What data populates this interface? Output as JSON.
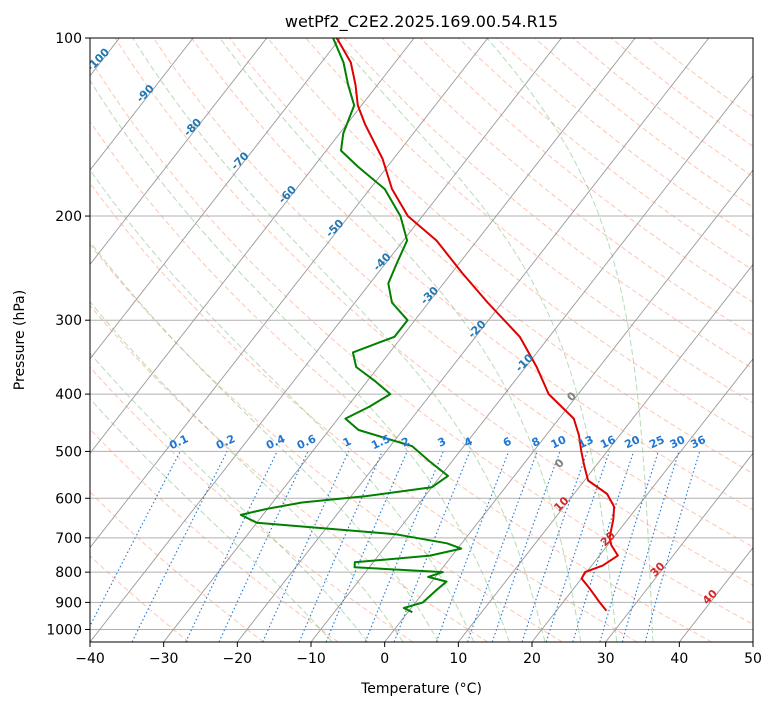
{
  "chart_data": {
    "type": "line",
    "title": "wetPf2_C2E2.2025.169.00.54.R15",
    "xlabel": "Temperature (°C)",
    "ylabel": "Pressure (hPa)",
    "xlim": [
      -40,
      50
    ],
    "ylim": [
      1050,
      100
    ],
    "y_scale": "log",
    "grid": true,
    "x_ticks": [
      "−40",
      "−30",
      "−20",
      "−10",
      "0",
      "10",
      "20",
      "30",
      "40",
      "50"
    ],
    "y_ticks": [
      {
        "p": 1000,
        "label": "1000"
      },
      {
        "p": 900,
        "label": "900"
      },
      {
        "p": 800,
        "label": "800"
      },
      {
        "p": 700,
        "label": "700"
      },
      {
        "p": 600,
        "label": "600"
      },
      {
        "p": 500,
        "label": "500"
      },
      {
        "p": 400,
        "label": "400"
      },
      {
        "p": 300,
        "label": "300"
      },
      {
        "p": 200,
        "label": "200"
      },
      {
        "p": 100,
        "label": "100"
      }
    ],
    "skew_reference": {
      "dx": 64,
      "dp_from": 1050,
      "dp_to": 100
    },
    "isotherm_start_values": [
      -110,
      -100,
      -90,
      -80,
      -70,
      -60,
      -50,
      -40,
      -30,
      -20,
      -10,
      0,
      10,
      20,
      30,
      40,
      50
    ],
    "dry_adiabat_thetas": [
      -30,
      -20,
      -10,
      0,
      10,
      20,
      30,
      40,
      50,
      60,
      70,
      80,
      90,
      100,
      110,
      120,
      130,
      140,
      150,
      160,
      170,
      180,
      190,
      200
    ],
    "moist_adiabat_bases": [
      -10,
      -5,
      0,
      5,
      10,
      15,
      20,
      25,
      30,
      35
    ],
    "mixing_ratios": [
      "0.1",
      "0.2",
      "0.4",
      "0.6",
      "1",
      "1.5",
      "2",
      "3",
      "4",
      "6",
      "8",
      "10",
      "13",
      "16",
      "20",
      "25",
      "30",
      "36"
    ],
    "series": [
      {
        "key": "temperature",
        "color": "#e00000",
        "points": [
          {
            "p": 930,
            "t": 26.8
          },
          {
            "p": 900,
            "t": 25.0
          },
          {
            "p": 850,
            "t": 22.0
          },
          {
            "p": 820,
            "t": 20.0
          },
          {
            "p": 800,
            "t": 19.8
          },
          {
            "p": 780,
            "t": 21.5
          },
          {
            "p": 750,
            "t": 22.5
          },
          {
            "p": 720,
            "t": 20.5
          },
          {
            "p": 700,
            "t": 19.5
          },
          {
            "p": 650,
            "t": 18.0
          },
          {
            "p": 620,
            "t": 16.8
          },
          {
            "p": 590,
            "t": 14.5
          },
          {
            "p": 560,
            "t": 10.5
          },
          {
            "p": 530,
            "t": 8.5
          },
          {
            "p": 500,
            "t": 6.5
          },
          {
            "p": 470,
            "t": 4.5
          },
          {
            "p": 440,
            "t": 2.0
          },
          {
            "p": 400,
            "t": -4.0
          },
          {
            "p": 360,
            "t": -8.5
          },
          {
            "p": 320,
            "t": -14.0
          },
          {
            "p": 280,
            "t": -22.0
          },
          {
            "p": 250,
            "t": -28.5
          },
          {
            "p": 220,
            "t": -35.5
          },
          {
            "p": 200,
            "t": -42.0
          },
          {
            "p": 180,
            "t": -47.0
          },
          {
            "p": 160,
            "t": -51.5
          },
          {
            "p": 140,
            "t": -57.5
          },
          {
            "p": 130,
            "t": -60.5
          },
          {
            "p": 120,
            "t": -63.0
          },
          {
            "p": 110,
            "t": -66.0
          },
          {
            "p": 100,
            "t": -70.5
          }
        ]
      },
      {
        "key": "dewpoint",
        "color": "#008000",
        "points": [
          {
            "p": 935,
            "t": 0.6
          },
          {
            "p": 920,
            "t": -1.0
          },
          {
            "p": 900,
            "t": 1.0
          },
          {
            "p": 860,
            "t": 1.5
          },
          {
            "p": 830,
            "t": 2.0
          },
          {
            "p": 815,
            "t": -1.0
          },
          {
            "p": 800,
            "t": 0.5
          },
          {
            "p": 785,
            "t": -12.0
          },
          {
            "p": 770,
            "t": -12.5
          },
          {
            "p": 750,
            "t": -3.0
          },
          {
            "p": 730,
            "t": 0.5
          },
          {
            "p": 715,
            "t": -2.0
          },
          {
            "p": 690,
            "t": -10.0
          },
          {
            "p": 660,
            "t": -30.0
          },
          {
            "p": 640,
            "t": -33.0
          },
          {
            "p": 625,
            "t": -30.0
          },
          {
            "p": 610,
            "t": -26.0
          },
          {
            "p": 595,
            "t": -18.0
          },
          {
            "p": 575,
            "t": -10.0
          },
          {
            "p": 550,
            "t": -9.0
          },
          {
            "p": 520,
            "t": -13.0
          },
          {
            "p": 490,
            "t": -17.0
          },
          {
            "p": 460,
            "t": -26.0
          },
          {
            "p": 440,
            "t": -29.0
          },
          {
            "p": 420,
            "t": -27.0
          },
          {
            "p": 400,
            "t": -25.5
          },
          {
            "p": 380,
            "t": -29.0
          },
          {
            "p": 360,
            "t": -33.0
          },
          {
            "p": 340,
            "t": -35.0
          },
          {
            "p": 320,
            "t": -31.0
          },
          {
            "p": 300,
            "t": -31.0
          },
          {
            "p": 280,
            "t": -35.0
          },
          {
            "p": 260,
            "t": -37.5
          },
          {
            "p": 240,
            "t": -38.5
          },
          {
            "p": 220,
            "t": -39.5
          },
          {
            "p": 200,
            "t": -43.0
          },
          {
            "p": 180,
            "t": -48.0
          },
          {
            "p": 165,
            "t": -54.0
          },
          {
            "p": 155,
            "t": -58.0
          },
          {
            "p": 145,
            "t": -59.5
          },
          {
            "p": 130,
            "t": -61.0
          },
          {
            "p": 120,
            "t": -64.0
          },
          {
            "p": 110,
            "t": -67.0
          },
          {
            "p": 100,
            "t": -71.0
          }
        ]
      }
    ],
    "freezing_level_label": "0",
    "colors": {
      "isotherm": "#999999",
      "dry_adiabat": "#ff7f50",
      "moist_adiabat": "#60b060",
      "mixing_ratio": "#1f77d4",
      "isotherm_label": "#1f77b4",
      "warm_label": "#d62728",
      "zero_label": "#808080"
    }
  }
}
